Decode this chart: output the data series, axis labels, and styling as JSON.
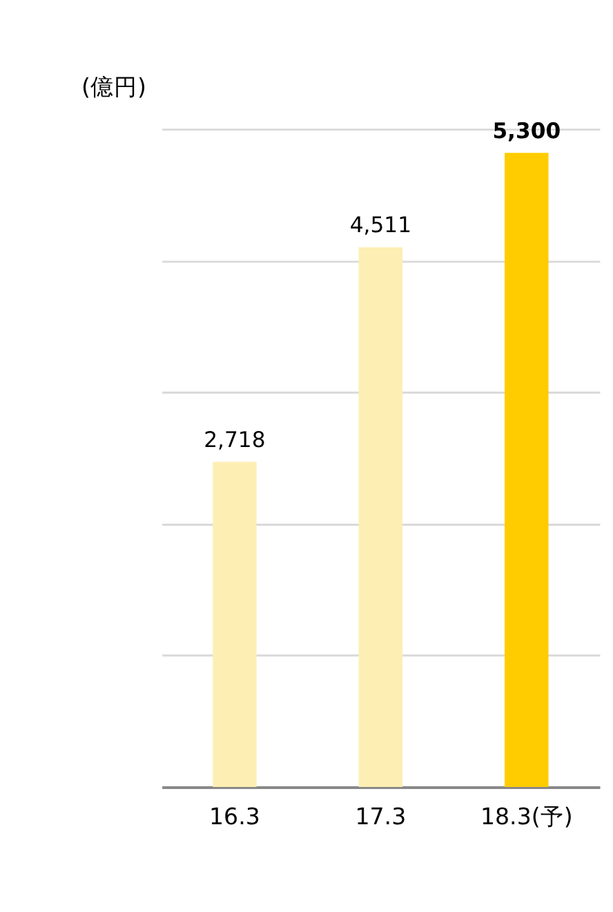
{
  "chart_data": {
    "type": "bar",
    "ylabel": "(億円)",
    "categories": [
      "16.3",
      "17.3",
      "18.3(予)"
    ],
    "values": [
      2718,
      4511,
      5300
    ],
    "colors": [
      "#fdeeb3",
      "#fdeeb3",
      "#ffcc00"
    ],
    "value_labels": [
      "2,718",
      "4,511",
      "5,300"
    ],
    "ylim": [
      0,
      5500
    ],
    "yticks": [
      {
        "value": 0,
        "label": null
      },
      {
        "value": 1100,
        "label": null
      },
      {
        "value": 2200,
        "label": null
      },
      {
        "value": 3300,
        "label": null
      },
      {
        "value": 4400,
        "label": null
      },
      {
        "value": 5500,
        "label": null
      }
    ],
    "grid": "y",
    "tick_labels": "x"
  }
}
